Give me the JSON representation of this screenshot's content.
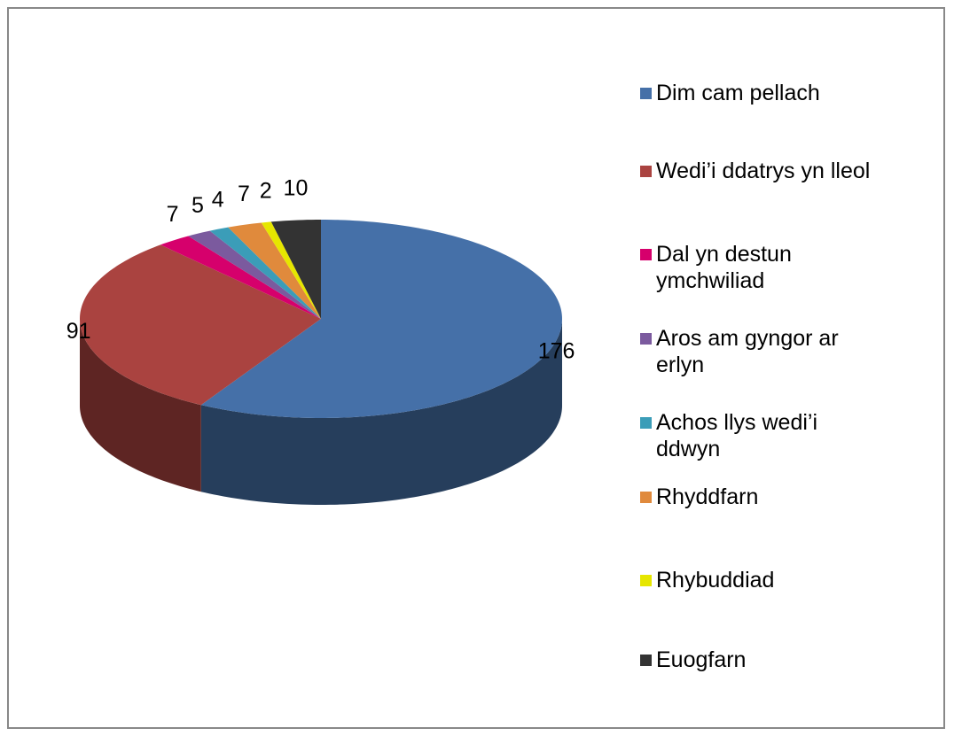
{
  "chart_data": {
    "type": "pie",
    "categories": [
      "Dim cam pellach",
      "Wedi’i ddatrys yn lleol",
      "Dal yn destun ymchwiliad",
      "Aros am gyngor ar erlyn",
      "Achos llys wedi’i ddwyn",
      "Rhyddfarn",
      "Rhybuddiad",
      "Euogfarn"
    ],
    "values": [
      176,
      91,
      7,
      5,
      4,
      7,
      2,
      10
    ],
    "colors": [
      "#4570a8",
      "#aa4340",
      "#d6006c",
      "#7b5a9e",
      "#3b9db8",
      "#e08a3c",
      "#e6e600",
      "#333333"
    ],
    "legend": "right"
  }
}
